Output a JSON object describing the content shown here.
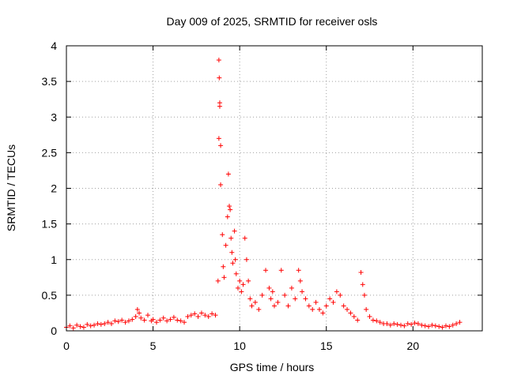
{
  "chart_data": {
    "type": "scatter",
    "title": "Day 009 of 2025, SRMTID for receiver osls",
    "xlabel": "GPS time / hours",
    "ylabel": "SRMTID / TECUs",
    "xlim": [
      0,
      24
    ],
    "ylim": [
      0,
      4
    ],
    "xticks": [
      "0",
      "5",
      "10",
      "15",
      "20"
    ],
    "yticks": [
      "0",
      "0.5",
      "1",
      "1.5",
      "2",
      "2.5",
      "3",
      "3.5",
      "4"
    ],
    "xtick_values": [
      0,
      5,
      10,
      15,
      20
    ],
    "ytick_values": [
      0,
      0.5,
      1,
      1.5,
      2,
      2.5,
      3,
      3.5,
      4
    ],
    "grid": true,
    "marker": "+",
    "color": "#ff0000",
    "series": [
      {
        "name": "SRMTID",
        "x": [
          0.0,
          0.2,
          0.4,
          0.6,
          0.8,
          1.0,
          1.2,
          1.4,
          1.6,
          1.8,
          2.0,
          2.2,
          2.4,
          2.6,
          2.8,
          3.0,
          3.2,
          3.4,
          3.6,
          3.8,
          4.0,
          4.1,
          4.2,
          4.3,
          4.5,
          4.7,
          4.9,
          5.0,
          5.2,
          5.4,
          5.6,
          5.8,
          6.0,
          6.2,
          6.4,
          6.6,
          6.8,
          7.0,
          7.2,
          7.4,
          7.6,
          7.8,
          8.0,
          8.2,
          8.4,
          8.6,
          8.75,
          8.8,
          8.8,
          8.82,
          8.85,
          8.85,
          8.9,
          8.9,
          9.0,
          9.05,
          9.1,
          9.2,
          9.3,
          9.35,
          9.4,
          9.45,
          9.5,
          9.55,
          9.6,
          9.7,
          9.75,
          9.8,
          9.9,
          10.0,
          10.1,
          10.2,
          10.3,
          10.4,
          10.5,
          10.6,
          10.7,
          10.9,
          11.1,
          11.3,
          11.5,
          11.7,
          11.8,
          11.9,
          12.0,
          12.2,
          12.4,
          12.6,
          12.8,
          13.0,
          13.2,
          13.4,
          13.5,
          13.6,
          13.8,
          14.0,
          14.2,
          14.4,
          14.6,
          14.8,
          15.0,
          15.2,
          15.4,
          15.6,
          15.8,
          16.0,
          16.2,
          16.4,
          16.6,
          16.8,
          17.0,
          17.1,
          17.2,
          17.3,
          17.5,
          17.7,
          17.9,
          18.1,
          18.3,
          18.5,
          18.7,
          18.9,
          19.1,
          19.3,
          19.5,
          19.7,
          19.9,
          20.1,
          20.3,
          20.5,
          20.7,
          20.9,
          21.1,
          21.3,
          21.5,
          21.7,
          21.9,
          22.1,
          22.3,
          22.5,
          22.7
        ],
        "y": [
          0.05,
          0.07,
          0.04,
          0.08,
          0.06,
          0.05,
          0.09,
          0.07,
          0.08,
          0.1,
          0.09,
          0.1,
          0.12,
          0.1,
          0.14,
          0.13,
          0.15,
          0.12,
          0.14,
          0.16,
          0.2,
          0.3,
          0.25,
          0.18,
          0.15,
          0.22,
          0.14,
          0.16,
          0.12,
          0.15,
          0.18,
          0.14,
          0.16,
          0.19,
          0.15,
          0.14,
          0.12,
          0.2,
          0.22,
          0.24,
          0.2,
          0.25,
          0.22,
          0.2,
          0.24,
          0.22,
          0.7,
          2.7,
          3.8,
          3.55,
          3.2,
          3.15,
          2.6,
          2.05,
          1.35,
          0.9,
          0.75,
          1.2,
          1.6,
          2.2,
          1.75,
          1.7,
          1.3,
          1.1,
          0.95,
          1.4,
          1.0,
          0.8,
          0.6,
          0.7,
          0.55,
          0.65,
          1.3,
          1.0,
          0.7,
          0.45,
          0.35,
          0.4,
          0.3,
          0.5,
          0.85,
          0.6,
          0.45,
          0.55,
          0.35,
          0.4,
          0.85,
          0.5,
          0.35,
          0.6,
          0.45,
          0.85,
          0.7,
          0.55,
          0.45,
          0.35,
          0.3,
          0.4,
          0.3,
          0.25,
          0.35,
          0.45,
          0.4,
          0.55,
          0.5,
          0.35,
          0.3,
          0.25,
          0.2,
          0.15,
          0.82,
          0.65,
          0.5,
          0.3,
          0.2,
          0.15,
          0.14,
          0.12,
          0.1,
          0.1,
          0.08,
          0.1,
          0.09,
          0.08,
          0.07,
          0.1,
          0.09,
          0.11,
          0.1,
          0.08,
          0.07,
          0.06,
          0.08,
          0.07,
          0.06,
          0.05,
          0.07,
          0.06,
          0.08,
          0.1,
          0.12
        ]
      }
    ]
  }
}
